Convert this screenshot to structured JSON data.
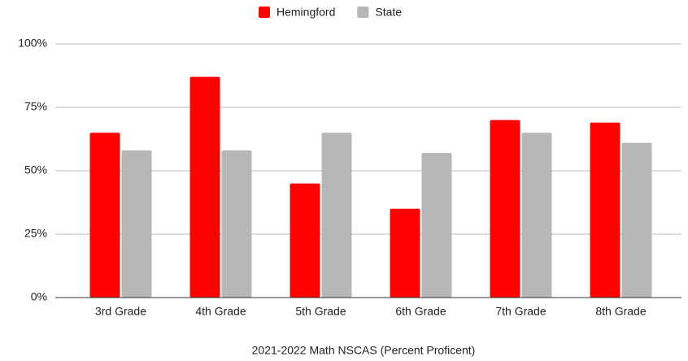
{
  "chart_data": {
    "type": "bar",
    "title": "2021-2022 Math NSCAS (Percent Proficent)",
    "categories": [
      "3rd Grade",
      "4th Grade",
      "5th Grade",
      "6th Grade",
      "7th Grade",
      "8th Grade"
    ],
    "series": [
      {
        "name": "Hemingford",
        "color": "#ff0000",
        "values": [
          65,
          87,
          45,
          35,
          70,
          69
        ]
      },
      {
        "name": "State",
        "color": "#b7b7b7",
        "values": [
          58,
          58,
          65,
          57,
          65,
          61
        ]
      }
    ],
    "ylim": [
      0,
      100
    ],
    "yticks": [
      {
        "value": 0,
        "label": "0%"
      },
      {
        "value": 25,
        "label": "25%"
      },
      {
        "value": 50,
        "label": "50%"
      },
      {
        "value": 75,
        "label": "75%"
      },
      {
        "value": 100,
        "label": "100%"
      }
    ],
    "grid": true,
    "legend": "top"
  }
}
